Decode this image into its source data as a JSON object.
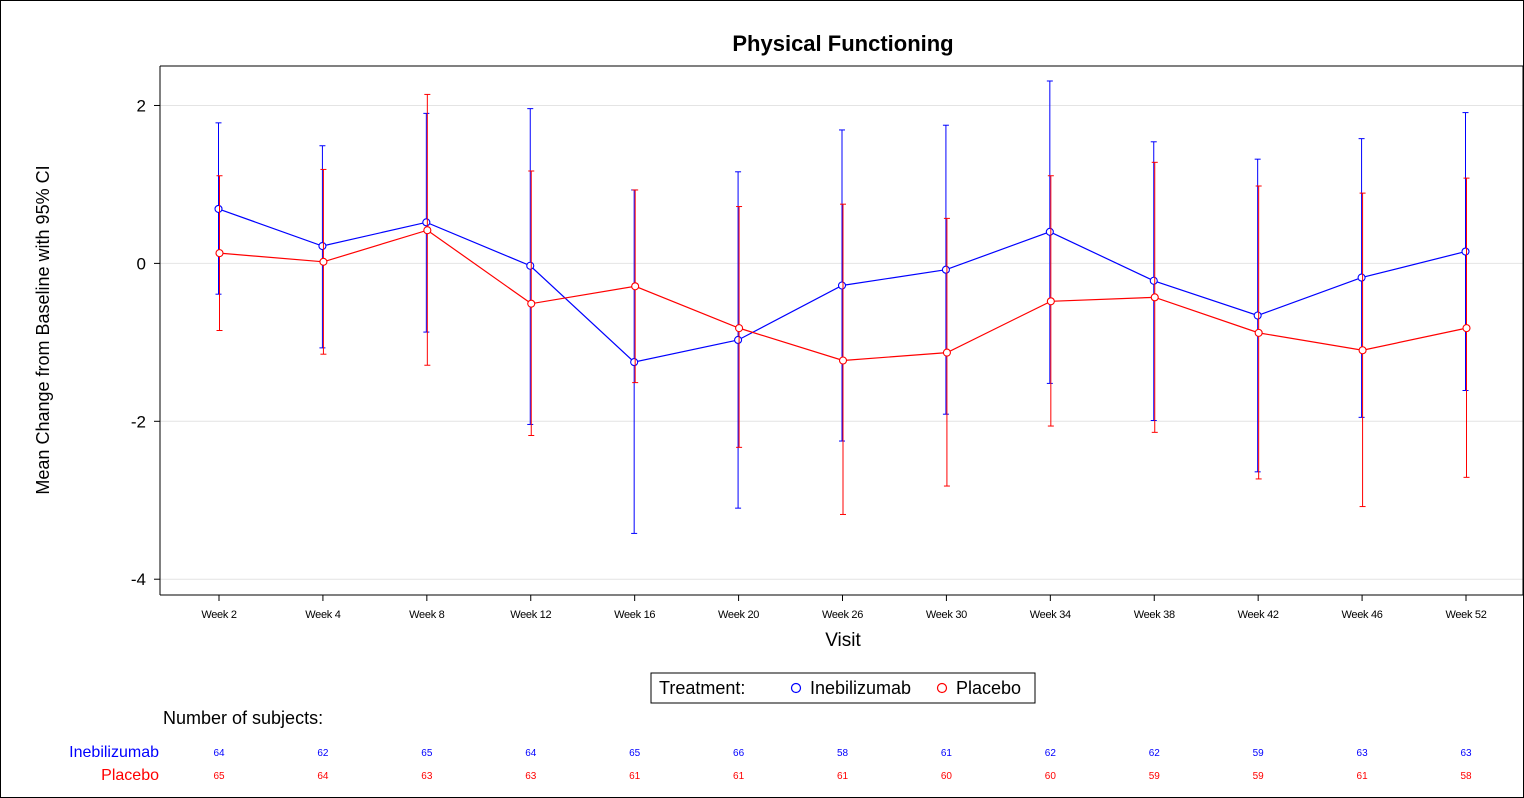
{
  "chart_data": {
    "type": "line",
    "title": "Physical Functioning",
    "xlabel": "Visit",
    "ylabel": "Mean Change from Baseline with 95% CI",
    "ylim": [
      -4.2,
      2.5
    ],
    "yticks": [
      2,
      0,
      -2,
      -4
    ],
    "ytick_labels": [
      "2",
      "0",
      "-2",
      "-4"
    ],
    "grid": "horizontal",
    "categories": [
      "Week 2",
      "Week 4",
      "Week 8",
      "Week 12",
      "Week 16",
      "Week 20",
      "Week 26",
      "Week 30",
      "Week 34",
      "Week 38",
      "Week 42",
      "Week 46",
      "Week 52"
    ],
    "series": [
      {
        "name": "Inebilizumab",
        "color": "#0000ff",
        "marker": "circle-open",
        "values": [
          0.69,
          0.22,
          0.52,
          -0.03,
          -1.25,
          -0.97,
          -0.28,
          -0.08,
          0.4,
          -0.22,
          -0.66,
          -0.18,
          0.15
        ],
        "ci_upper": [
          1.78,
          1.49,
          1.9,
          1.96,
          0.93,
          1.16,
          1.69,
          1.75,
          2.31,
          1.54,
          1.32,
          1.58,
          1.91
        ],
        "ci_lower": [
          -0.39,
          -1.07,
          -0.87,
          -2.04,
          -3.42,
          -3.1,
          -2.25,
          -1.91,
          -1.52,
          -1.99,
          -2.64,
          -1.95,
          -1.61
        ]
      },
      {
        "name": "Placebo",
        "color": "#ff0000",
        "marker": "circle-open",
        "values": [
          0.13,
          0.02,
          0.42,
          -0.51,
          -0.29,
          -0.82,
          -1.23,
          -1.13,
          -0.48,
          -0.43,
          -0.88,
          -1.1,
          -0.82
        ],
        "ci_upper": [
          1.11,
          1.19,
          2.14,
          1.17,
          0.93,
          0.72,
          0.75,
          0.57,
          1.11,
          1.28,
          0.98,
          0.89,
          1.08
        ],
        "ci_lower": [
          -0.85,
          -1.15,
          -1.29,
          -2.18,
          -1.51,
          -2.33,
          -3.18,
          -2.82,
          -2.06,
          -2.14,
          -2.73,
          -3.08,
          -2.71
        ]
      }
    ],
    "legend": {
      "title": "Treatment:",
      "placement": "bottom-center"
    }
  },
  "subjects_table": {
    "title": "Number of subjects:",
    "rows": [
      {
        "label": "Inebilizumab",
        "color": "#0000ff",
        "counts": [
          "64",
          "62",
          "65",
          "64",
          "65",
          "66",
          "58",
          "61",
          "62",
          "62",
          "59",
          "63",
          "63"
        ]
      },
      {
        "label": "Placebo",
        "color": "#ff0000",
        "counts": [
          "65",
          "64",
          "63",
          "63",
          "61",
          "61",
          "61",
          "60",
          "60",
          "59",
          "59",
          "61",
          "58"
        ]
      }
    ]
  }
}
